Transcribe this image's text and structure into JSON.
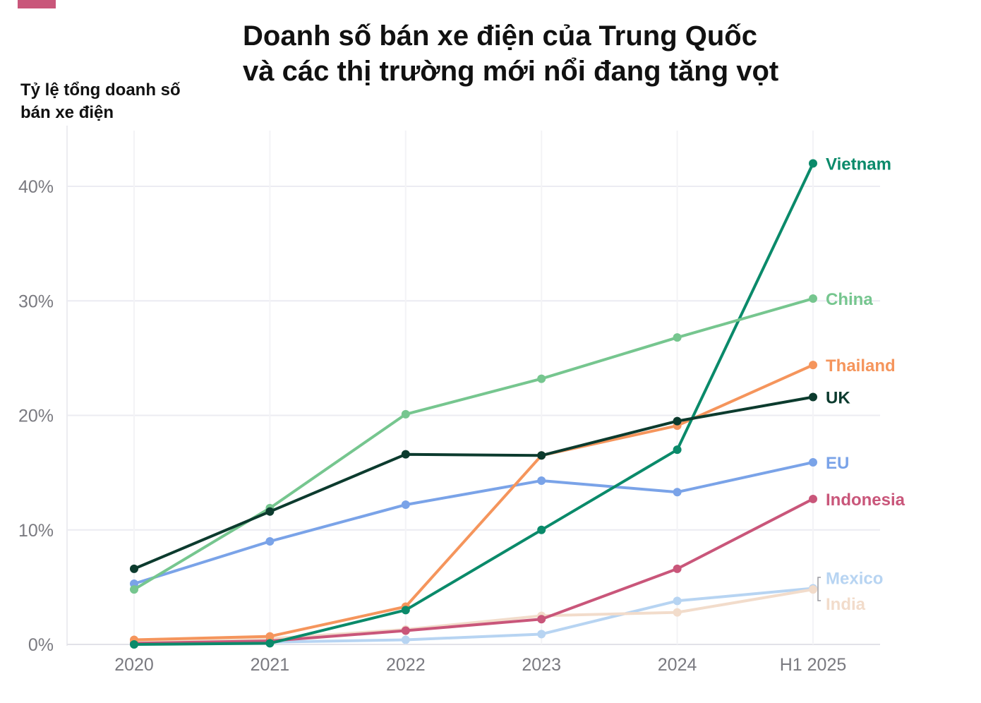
{
  "header": {
    "title_line1": "Doanh số bán xe điện của Trung Quốc",
    "title_line2": "và các thị trường mới nổi đang tăng vọt",
    "ylabel_line1": "Tỷ lệ tổng doanh số",
    "ylabel_line2": "bán xe điện"
  },
  "chart_data": {
    "type": "line",
    "title": "Doanh số bán xe điện của Trung Quốc và các thị trường mới nổi đang tăng vọt",
    "ylabel": "Tỷ lệ tổng doanh số bán xe điện",
    "xlabel": "",
    "categories": [
      "2020",
      "2021",
      "2022",
      "2023",
      "2024",
      "H1 2025"
    ],
    "ylim": [
      0,
      45
    ],
    "yticks": [
      0,
      10,
      20,
      30,
      40
    ],
    "ytick_labels": [
      "0%",
      "10%",
      "20%",
      "30%",
      "40%"
    ],
    "grid": true,
    "legend": "direct labels at line ends",
    "series": [
      {
        "name": "Mexico",
        "color": "#b7d4f2",
        "values": [
          0.2,
          0.2,
          0.4,
          0.9,
          3.8,
          4.9
        ]
      },
      {
        "name": "India",
        "color": "#f2dccb",
        "values": [
          0.2,
          0.5,
          1.3,
          2.5,
          2.8,
          4.8
        ]
      },
      {
        "name": "Indonesia",
        "color": "#c9567a",
        "values": [
          0.1,
          0.3,
          1.2,
          2.2,
          6.6,
          12.7
        ]
      },
      {
        "name": "EU",
        "color": "#7aa3e8",
        "values": [
          5.3,
          9.0,
          12.2,
          14.3,
          13.3,
          15.9
        ]
      },
      {
        "name": "Thailand",
        "color": "#f5955c",
        "values": [
          0.4,
          0.7,
          3.3,
          16.5,
          19.1,
          24.4
        ]
      },
      {
        "name": "Vietnam",
        "color": "#0a8a6a",
        "values": [
          0.0,
          0.1,
          3.0,
          10.0,
          17.0,
          42.0
        ]
      },
      {
        "name": "China",
        "color": "#76c68f",
        "values": [
          4.8,
          11.9,
          20.1,
          23.2,
          26.8,
          30.2
        ]
      },
      {
        "name": "UK",
        "color": "#0c3b2e",
        "values": [
          6.6,
          11.6,
          16.6,
          16.5,
          19.5,
          21.6
        ]
      }
    ]
  }
}
